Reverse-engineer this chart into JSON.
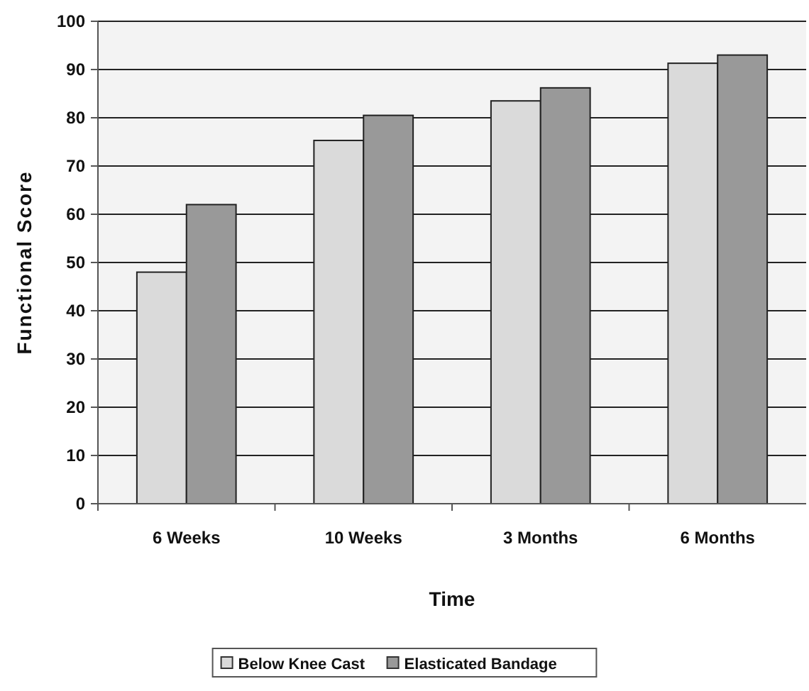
{
  "chart_data": {
    "type": "bar",
    "xlabel": "Time",
    "ylabel": "Functional Score",
    "categories": [
      "6 Weeks",
      "10 Weeks",
      "3 Months",
      "6 Months"
    ],
    "series": [
      {
        "name": "Below Knee Cast",
        "color": "#dadada",
        "values": [
          48,
          75.3,
          83.5,
          91.3
        ]
      },
      {
        "name": "Elasticated Bandage",
        "color": "#999999",
        "values": [
          62,
          80.5,
          86.2,
          93
        ]
      }
    ],
    "ylim": [
      0,
      100
    ],
    "yticks": [
      0,
      10,
      20,
      30,
      40,
      50,
      60,
      70,
      80,
      90,
      100
    ],
    "grid": "y",
    "legend": "bottom"
  }
}
